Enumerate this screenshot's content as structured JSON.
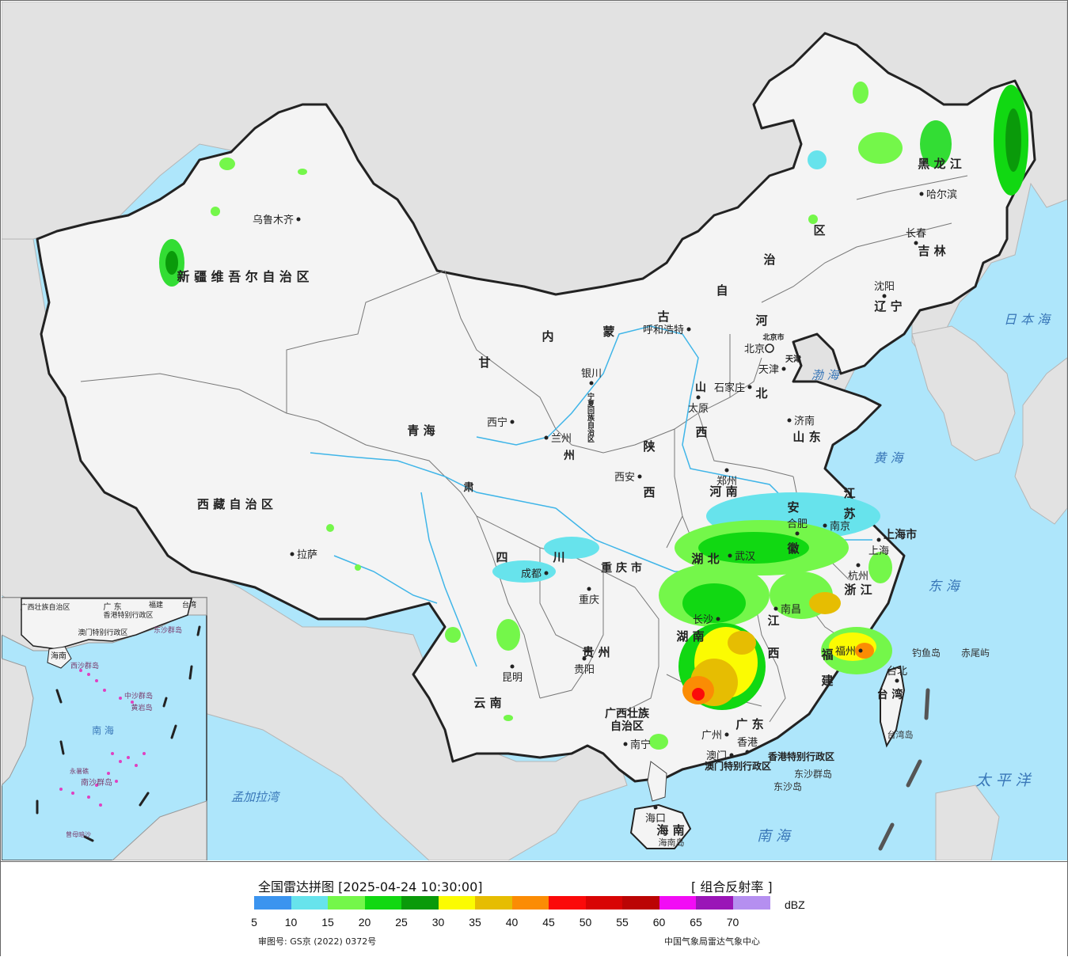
{
  "map": {
    "cities": [
      {
        "id": "urumqi",
        "name": "乌鲁木齐"
      },
      {
        "id": "lhasa",
        "name": "拉萨"
      },
      {
        "id": "xining",
        "name": "西宁"
      },
      {
        "id": "lanzhou",
        "name": "兰州"
      },
      {
        "id": "yinchuan",
        "name": "银川"
      },
      {
        "id": "hohhot",
        "name": "呼和浩特"
      },
      {
        "id": "beijing",
        "name": "北京"
      },
      {
        "id": "tianjin",
        "name": "天津"
      },
      {
        "id": "shijiazhuang",
        "name": "石家庄"
      },
      {
        "id": "taiyuan",
        "name": "太原"
      },
      {
        "id": "jinan",
        "name": "济南"
      },
      {
        "id": "zhengzhou",
        "name": "郑州"
      },
      {
        "id": "xian",
        "name": "西安"
      },
      {
        "id": "chengdu",
        "name": "成都"
      },
      {
        "id": "chongqing",
        "name": "重庆"
      },
      {
        "id": "guiyang",
        "name": "贵阳"
      },
      {
        "id": "kunming",
        "name": "昆明"
      },
      {
        "id": "nanning",
        "name": "南宁"
      },
      {
        "id": "guangzhou",
        "name": "广州"
      },
      {
        "id": "hongkong",
        "name": "香港"
      },
      {
        "id": "macau",
        "name": "澳门"
      },
      {
        "id": "haikou",
        "name": "海口"
      },
      {
        "id": "changsha",
        "name": "长沙"
      },
      {
        "id": "wuhan",
        "name": "武汉"
      },
      {
        "id": "nanchang",
        "name": "南昌"
      },
      {
        "id": "hefei",
        "name": "合肥"
      },
      {
        "id": "nanjing",
        "name": "南京"
      },
      {
        "id": "shanghai",
        "name": "上海"
      },
      {
        "id": "hangzhou",
        "name": "杭州"
      },
      {
        "id": "fuzhou",
        "name": "福州"
      },
      {
        "id": "taipei",
        "name": "台北"
      },
      {
        "id": "shenyang",
        "name": "沈阳"
      },
      {
        "id": "changchun",
        "name": "长春"
      },
      {
        "id": "harbin",
        "name": "哈尔滨"
      }
    ],
    "regions": [
      {
        "id": "xinjiang",
        "name": "新 疆 维 吾 尔 自 治 区"
      },
      {
        "id": "xizang",
        "name": "西 藏 自 治 区"
      },
      {
        "id": "qinghai",
        "name": "青 海"
      },
      {
        "id": "gansu",
        "name": "甘"
      },
      {
        "id": "gansu2",
        "name": "肃"
      },
      {
        "id": "neimeng1",
        "name": "内"
      },
      {
        "id": "neimeng2",
        "name": "蒙"
      },
      {
        "id": "neimeng3",
        "name": "古"
      },
      {
        "id": "neimeng4",
        "name": "自"
      },
      {
        "id": "neimeng5",
        "name": "治"
      },
      {
        "id": "neimeng6",
        "name": "区"
      },
      {
        "id": "heilongjiang",
        "name": "黑 龙 江"
      },
      {
        "id": "jilin",
        "name": "吉 林"
      },
      {
        "id": "liaoning",
        "name": "辽 宁"
      },
      {
        "id": "hebei1",
        "name": "河"
      },
      {
        "id": "hebei2",
        "name": "北"
      },
      {
        "id": "shanxi1",
        "name": "山"
      },
      {
        "id": "shanxi2",
        "name": "西"
      },
      {
        "id": "shaanxi1",
        "name": "陕"
      },
      {
        "id": "shaanxi2",
        "name": "西"
      },
      {
        "id": "shandong",
        "name": "山 东"
      },
      {
        "id": "henan",
        "name": "河 南"
      },
      {
        "id": "jiangsu1",
        "name": "江"
      },
      {
        "id": "jiangsu2",
        "name": "苏"
      },
      {
        "id": "anhui1",
        "name": "安"
      },
      {
        "id": "anhui2",
        "name": "徽"
      },
      {
        "id": "hubei",
        "name": "湖 北"
      },
      {
        "id": "hunan",
        "name": "湖 南"
      },
      {
        "id": "jiangxi1",
        "name": "江"
      },
      {
        "id": "jiangxi2",
        "name": "西"
      },
      {
        "id": "zhejiang",
        "name": "浙 江"
      },
      {
        "id": "fujian1",
        "name": "福"
      },
      {
        "id": "fujian2",
        "name": "建"
      },
      {
        "id": "sichuan1",
        "name": "四"
      },
      {
        "id": "sichuan2",
        "name": "川"
      },
      {
        "id": "chongqingshi",
        "name": "重 庆 市"
      },
      {
        "id": "guizhou",
        "name": "贵 州"
      },
      {
        "id": "yunnan",
        "name": "云 南"
      },
      {
        "id": "guangxi1",
        "name": "广西壮族"
      },
      {
        "id": "guangxi2",
        "name": "自治区"
      },
      {
        "id": "guangdong",
        "name": "广 东"
      },
      {
        "id": "hainan",
        "name": "海 南"
      },
      {
        "id": "taiwan",
        "name": "台 湾"
      },
      {
        "id": "shanghaishi",
        "name": "上海市"
      },
      {
        "id": "ningxia",
        "name": "宁夏回族自治区"
      },
      {
        "id": "hk_sar",
        "name": "香港特别行政区"
      },
      {
        "id": "mo_sar",
        "name": "澳门特别行政区"
      },
      {
        "id": "gansu_city",
        "name": "州"
      },
      {
        "id": "beijingshi",
        "name": "北京市"
      },
      {
        "id": "tianjinshi",
        "name": "天津"
      }
    ],
    "seas": [
      {
        "id": "japansea",
        "name": "日 本 海"
      },
      {
        "id": "bohai",
        "name": "渤 海"
      },
      {
        "id": "yellowsea",
        "name": "黄 海"
      },
      {
        "id": "eastsea",
        "name": "东 海"
      },
      {
        "id": "pacific",
        "name": "太 平 洋"
      },
      {
        "id": "southsea",
        "name": "南 海"
      },
      {
        "id": "bengal",
        "name": "孟加拉湾"
      }
    ],
    "islands": [
      {
        "id": "diaoyu",
        "name": "钓鱼岛"
      },
      {
        "id": "chiwei",
        "name": "赤尾屿"
      },
      {
        "id": "taiwanisland",
        "name": "台湾岛"
      },
      {
        "id": "dongsha_qd",
        "name": "东沙群岛"
      },
      {
        "id": "dongsha",
        "name": "东沙岛"
      },
      {
        "id": "hainanisland",
        "name": "海南岛"
      }
    ],
    "inset": {
      "labels": [
        {
          "id": "i_gx",
          "name": "广西壮族自治区"
        },
        {
          "id": "i_gd",
          "name": "广 东"
        },
        {
          "id": "i_fj",
          "name": "福建"
        },
        {
          "id": "i_tw",
          "name": "台湾"
        },
        {
          "id": "i_hk",
          "name": "香港特别行政区"
        },
        {
          "id": "i_mo",
          "name": "澳门特别行政区"
        },
        {
          "id": "i_dsqd",
          "name": "东沙群岛"
        },
        {
          "id": "i_hn",
          "name": "海南"
        },
        {
          "id": "i_xsqd",
          "name": "西沙群岛"
        },
        {
          "id": "i_zsqd",
          "name": "中沙群岛"
        },
        {
          "id": "i_hy",
          "name": "黄岩岛"
        },
        {
          "id": "i_nh",
          "name": "南 海"
        },
        {
          "id": "i_nsqd",
          "name": "南沙群岛"
        },
        {
          "id": "i_ysj",
          "name": "永暑礁"
        },
        {
          "id": "i_zm",
          "name": "曾母暗沙"
        }
      ]
    }
  },
  "legend": {
    "title": "全国雷达拼图 [2025-04-24 10:30:00]",
    "product": "[ 组合反射率 ]",
    "unit": "dBZ",
    "colors": [
      "#3b94ef",
      "#67e3ec",
      "#74f74a",
      "#11d812",
      "#0a9a0a",
      "#fbfb02",
      "#e6bd02",
      "#fb8c04",
      "#fb0a0a",
      "#d80404",
      "#bb0404",
      "#f20cf5",
      "#9a15b7",
      "#b58ff0"
    ],
    "ticks": [
      "5",
      "10",
      "15",
      "20",
      "25",
      "30",
      "35",
      "40",
      "45",
      "50",
      "55",
      "60",
      "65",
      "70"
    ],
    "approval": "审图号: GS京 (2022) 0372号",
    "source": "中国气象局雷达气象中心"
  }
}
